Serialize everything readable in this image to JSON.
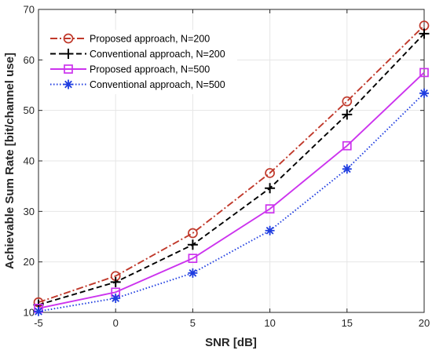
{
  "chart_data": {
    "type": "line",
    "title": "",
    "xlabel": "SNR [dB]",
    "ylabel": "Achievable Sum Rate [bit/channel use]",
    "xlim": [
      -5,
      20
    ],
    "ylim": [
      10,
      70
    ],
    "xticks": [
      "-5",
      "0",
      "5",
      "10",
      "15",
      "20"
    ],
    "yticks": [
      "10",
      "20",
      "30",
      "40",
      "50",
      "60",
      "70"
    ],
    "grid": true,
    "legend_position": "top-left",
    "x": [
      -5,
      0,
      5,
      10,
      15,
      20
    ],
    "series": [
      {
        "name": "Proposed approach, N=200",
        "values": [
          12.0,
          17.2,
          25.7,
          37.6,
          51.8,
          66.8
        ],
        "color": "#c0392b",
        "line": "dashdot",
        "marker": "circle"
      },
      {
        "name": "Conventional approach, N=200",
        "values": [
          11.5,
          16.0,
          23.4,
          34.6,
          49.2,
          65.2
        ],
        "color": "#000000",
        "line": "dashed",
        "marker": "plus"
      },
      {
        "name": "Proposed approach, N=500",
        "values": [
          10.8,
          14.0,
          20.7,
          30.5,
          43.0,
          57.5
        ],
        "color": "#cc33ee",
        "line": "solid",
        "marker": "square"
      },
      {
        "name": "Conventional approach, N=500",
        "values": [
          10.2,
          12.8,
          17.8,
          26.2,
          38.4,
          53.4
        ],
        "color": "#1f3de0",
        "line": "dotted",
        "marker": "asterisk"
      }
    ]
  }
}
